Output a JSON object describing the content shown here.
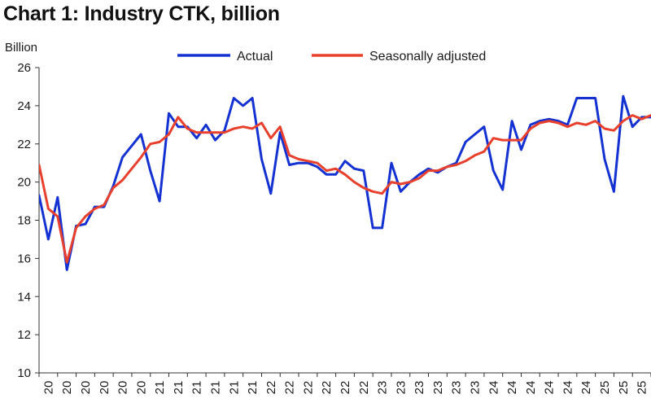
{
  "chart_data": {
    "type": "line",
    "title": "Chart 1: Industry CTK, billion",
    "ylabel": "Billion",
    "xlabel": "",
    "ylim": [
      10,
      26
    ],
    "yticks": [
      10,
      12,
      14,
      16,
      18,
      20,
      22,
      24,
      26
    ],
    "grid": false,
    "legend_position": "top",
    "x_tick_labels": [
      "20",
      "20",
      "20",
      "20",
      "20",
      "20",
      "21",
      "21",
      "21",
      "21",
      "21",
      "21",
      "22",
      "22",
      "22",
      "22",
      "22",
      "22",
      "23",
      "23",
      "23",
      "23",
      "23",
      "23",
      "24",
      "24",
      "24",
      "24",
      "24",
      "24",
      "25",
      "25",
      "25"
    ],
    "series": [
      {
        "name": "Actual",
        "color": "#1432d2",
        "values": [
          19.3,
          17.0,
          19.2,
          15.4,
          17.7,
          17.8,
          18.7,
          18.7,
          19.8,
          21.3,
          21.9,
          22.5,
          20.6,
          19.0,
          23.6,
          22.9,
          22.9,
          22.3,
          23.0,
          22.2,
          22.7,
          24.4,
          24.0,
          24.4,
          21.2,
          19.4,
          22.6,
          20.9,
          21.0,
          21.0,
          20.8,
          20.4,
          20.4,
          21.1,
          20.7,
          20.6,
          17.6,
          17.6,
          21.0,
          19.5,
          20.0,
          20.4,
          20.7,
          20.5,
          20.8,
          21.0,
          22.1,
          22.5,
          22.9,
          20.6,
          19.6,
          23.2,
          21.7,
          23.0,
          23.2,
          23.3,
          23.2,
          23.0,
          24.4,
          24.4,
          24.4,
          21.2,
          19.5,
          24.5,
          22.9,
          23.4,
          23.4
        ]
      },
      {
        "name": "Seasonally adjusted",
        "color": "#e8402c",
        "values": [
          20.9,
          18.6,
          18.2,
          15.8,
          17.6,
          18.2,
          18.6,
          18.8,
          19.7,
          20.1,
          20.7,
          21.3,
          22.0,
          22.1,
          22.5,
          23.4,
          22.8,
          22.6,
          22.6,
          22.6,
          22.6,
          22.8,
          22.9,
          22.8,
          23.1,
          22.3,
          22.9,
          21.4,
          21.2,
          21.1,
          21.0,
          20.6,
          20.7,
          20.4,
          20.0,
          19.7,
          19.5,
          19.4,
          20.0,
          19.9,
          20.0,
          20.2,
          20.6,
          20.6,
          20.8,
          20.9,
          21.1,
          21.4,
          21.6,
          22.3,
          22.2,
          22.2,
          22.2,
          22.8,
          23.1,
          23.2,
          23.1,
          22.9,
          23.1,
          23.0,
          23.2,
          22.8,
          22.7,
          23.2,
          23.5,
          23.3,
          23.5
        ]
      }
    ]
  }
}
